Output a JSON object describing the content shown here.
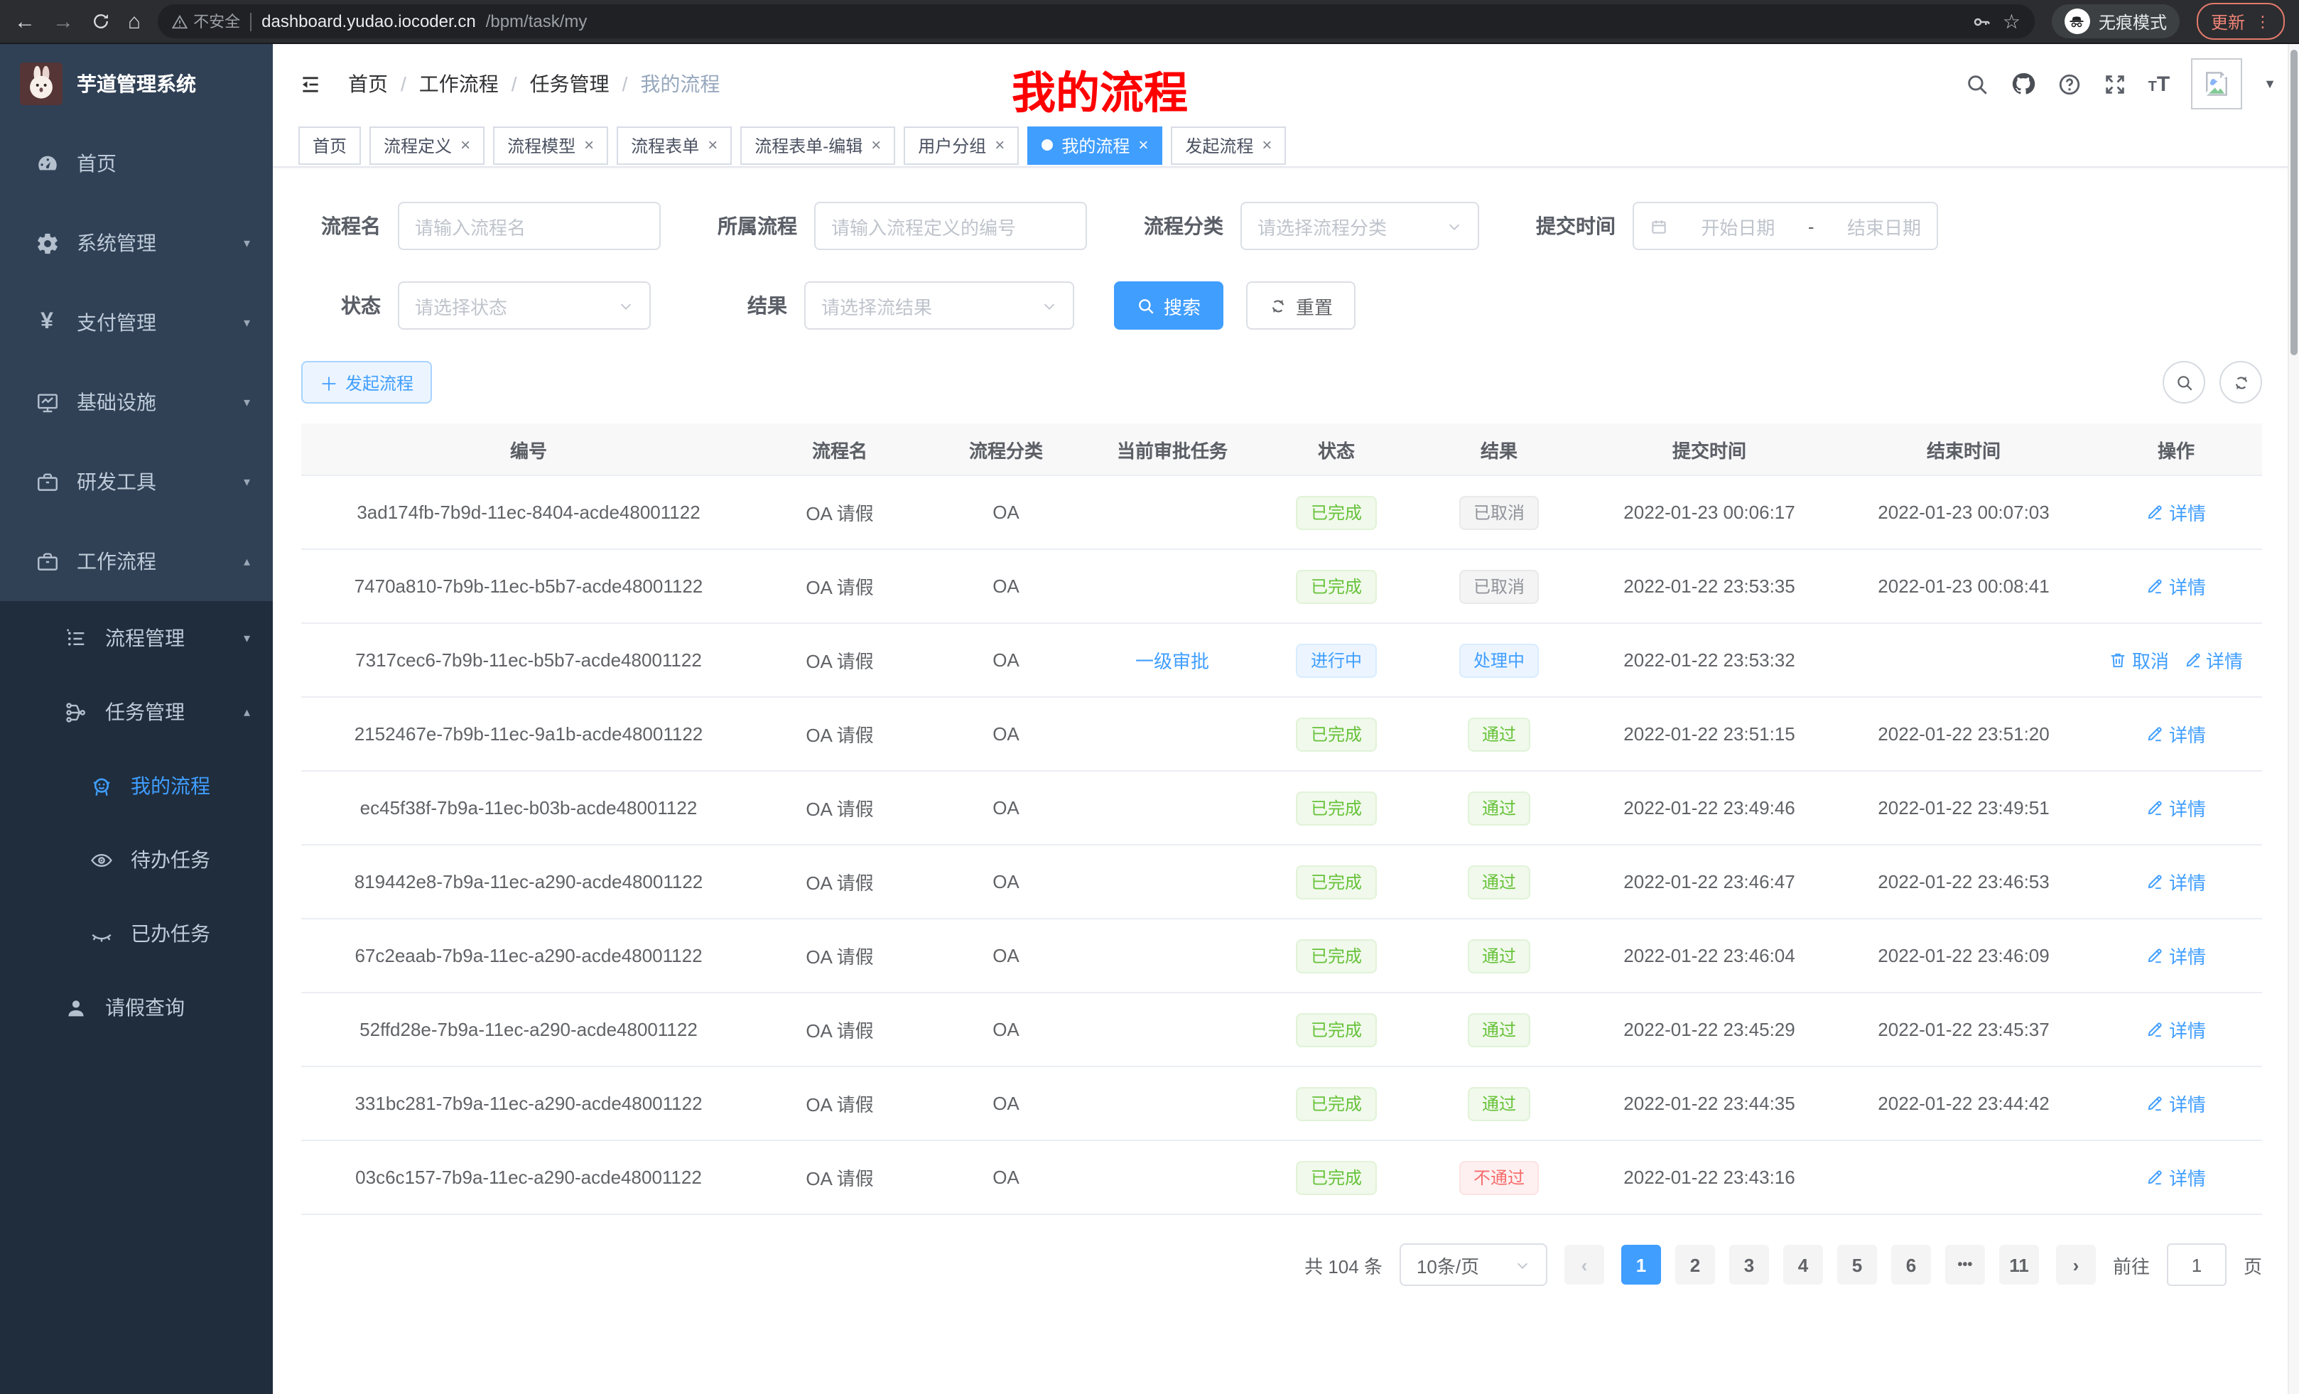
{
  "browser": {
    "security_label": "不安全",
    "url_host": "dashboard.yudao.iocoder.cn",
    "url_path": "/bpm/task/my",
    "incognito_label": "无痕模式",
    "update_label": "更新"
  },
  "annotation": {
    "text": "我的流程",
    "color": "#ff0000"
  },
  "colors": {
    "accent": "#409eff",
    "success": "#67c23a",
    "info": "#909399",
    "danger": "#f56c6c",
    "sidebar_bg": "#304156",
    "submenu_bg": "#1f2d3d"
  },
  "sidebar": {
    "logo_title": "芋道管理系统",
    "items": [
      {
        "key": "home",
        "label": "首页",
        "icon": "dashboard-icon",
        "level": 1,
        "chevron": "",
        "section": "root"
      },
      {
        "key": "system",
        "label": "系统管理",
        "icon": "gear-icon",
        "level": 1,
        "chevron": "down",
        "section": "root"
      },
      {
        "key": "payment",
        "label": "支付管理",
        "icon": "yen-icon",
        "level": 1,
        "chevron": "down",
        "section": "root"
      },
      {
        "key": "infrastructure",
        "label": "基础设施",
        "icon": "monitor-icon",
        "level": 1,
        "chevron": "down",
        "section": "root"
      },
      {
        "key": "dev-tools",
        "label": "研发工具",
        "icon": "briefcase-icon",
        "level": 1,
        "chevron": "down",
        "section": "root"
      },
      {
        "key": "workflow",
        "label": "工作流程",
        "icon": "briefcase-icon",
        "level": 1,
        "chevron": "up",
        "section": "root"
      },
      {
        "key": "process-mgmt",
        "label": "流程管理",
        "icon": "list-icon",
        "level": 2,
        "chevron": "down",
        "section": "sub"
      },
      {
        "key": "task-mgmt",
        "label": "任务管理",
        "icon": "tree-icon",
        "level": 2,
        "chevron": "up",
        "section": "sub"
      },
      {
        "key": "my-process",
        "label": "我的流程",
        "icon": "robot-face-icon",
        "level": 3,
        "chevron": "",
        "section": "sub",
        "active": true
      },
      {
        "key": "todo-tasks",
        "label": "待办任务",
        "icon": "eye-open-icon",
        "level": 3,
        "chevron": "",
        "section": "sub"
      },
      {
        "key": "done-tasks",
        "label": "已办任务",
        "icon": "eye-closed-icon",
        "level": 3,
        "chevron": "",
        "section": "sub"
      },
      {
        "key": "leave-query",
        "label": "请假查询",
        "icon": "user-icon",
        "level": 2,
        "chevron": "",
        "section": "sub"
      }
    ]
  },
  "header": {
    "breadcrumb": [
      "首页",
      "工作流程",
      "任务管理",
      "我的流程"
    ]
  },
  "tabs": [
    {
      "key": "home",
      "label": "首页",
      "closable": false
    },
    {
      "key": "process-definition",
      "label": "流程定义",
      "closable": true
    },
    {
      "key": "process-model",
      "label": "流程模型",
      "closable": true
    },
    {
      "key": "process-form",
      "label": "流程表单",
      "closable": true
    },
    {
      "key": "process-form-edit",
      "label": "流程表单-编辑",
      "closable": true
    },
    {
      "key": "user-group",
      "label": "用户分组",
      "closable": true
    },
    {
      "key": "my-process",
      "label": "我的流程",
      "closable": true,
      "active": true
    },
    {
      "key": "start-process",
      "label": "发起流程",
      "closable": true
    }
  ],
  "filters": {
    "fields": [
      {
        "label": "流程名",
        "placeholder": "请输入流程名",
        "type": "input"
      },
      {
        "label": "所属流程",
        "placeholder": "请输入流程定义的编号",
        "type": "input"
      },
      {
        "label": "流程分类",
        "placeholder": "请选择流程分类",
        "type": "select"
      },
      {
        "label": "提交时间",
        "type": "daterange",
        "start": "开始日期",
        "separator": "-",
        "end": "结束日期"
      },
      {
        "label": "状态",
        "placeholder": "请选择状态",
        "type": "select"
      },
      {
        "label": "结果",
        "placeholder": "请选择流结果",
        "type": "select"
      }
    ],
    "search_label": "搜索",
    "reset_label": "重置"
  },
  "toolbar": {
    "create_label": "发起流程"
  },
  "table": {
    "columns": [
      "编号",
      "流程名",
      "流程分类",
      "当前审批任务",
      "状态",
      "结果",
      "提交时间",
      "结束时间",
      "操作"
    ],
    "rows": [
      {
        "id": "3ad174fb-7b9d-11ec-8404-acde48001122",
        "name": "OA 请假",
        "category": "OA",
        "task": "",
        "status": {
          "text": "已完成",
          "type": "success"
        },
        "result": {
          "text": "已取消",
          "type": "info"
        },
        "submit_time": "2022-01-23 00:06:17",
        "end_time": "2022-01-23 00:07:03",
        "actions": [
          {
            "key": "detail",
            "label": "详情",
            "icon": "edit-icon"
          }
        ]
      },
      {
        "id": "7470a810-7b9b-11ec-b5b7-acde48001122",
        "name": "OA 请假",
        "category": "OA",
        "task": "",
        "status": {
          "text": "已完成",
          "type": "success"
        },
        "result": {
          "text": "已取消",
          "type": "info"
        },
        "submit_time": "2022-01-22 23:53:35",
        "end_time": "2022-01-23 00:08:41",
        "actions": [
          {
            "key": "detail",
            "label": "详情",
            "icon": "edit-icon"
          }
        ]
      },
      {
        "id": "7317cec6-7b9b-11ec-b5b7-acde48001122",
        "name": "OA 请假",
        "category": "OA",
        "task": "一级审批",
        "status": {
          "text": "进行中",
          "type": "primary"
        },
        "result": {
          "text": "处理中",
          "type": "primary"
        },
        "submit_time": "2022-01-22 23:53:32",
        "end_time": "",
        "actions": [
          {
            "key": "cancel",
            "label": "取消",
            "icon": "delete-icon"
          },
          {
            "key": "detail",
            "label": "详情",
            "icon": "edit-icon"
          }
        ]
      },
      {
        "id": "2152467e-7b9b-11ec-9a1b-acde48001122",
        "name": "OA 请假",
        "category": "OA",
        "task": "",
        "status": {
          "text": "已完成",
          "type": "success"
        },
        "result": {
          "text": "通过",
          "type": "success"
        },
        "submit_time": "2022-01-22 23:51:15",
        "end_time": "2022-01-22 23:51:20",
        "actions": [
          {
            "key": "detail",
            "label": "详情",
            "icon": "edit-icon"
          }
        ]
      },
      {
        "id": "ec45f38f-7b9a-11ec-b03b-acde48001122",
        "name": "OA 请假",
        "category": "OA",
        "task": "",
        "status": {
          "text": "已完成",
          "type": "success"
        },
        "result": {
          "text": "通过",
          "type": "success"
        },
        "submit_time": "2022-01-22 23:49:46",
        "end_time": "2022-01-22 23:49:51",
        "actions": [
          {
            "key": "detail",
            "label": "详情",
            "icon": "edit-icon"
          }
        ]
      },
      {
        "id": "819442e8-7b9a-11ec-a290-acde48001122",
        "name": "OA 请假",
        "category": "OA",
        "task": "",
        "status": {
          "text": "已完成",
          "type": "success"
        },
        "result": {
          "text": "通过",
          "type": "success"
        },
        "submit_time": "2022-01-22 23:46:47",
        "end_time": "2022-01-22 23:46:53",
        "actions": [
          {
            "key": "detail",
            "label": "详情",
            "icon": "edit-icon"
          }
        ]
      },
      {
        "id": "67c2eaab-7b9a-11ec-a290-acde48001122",
        "name": "OA 请假",
        "category": "OA",
        "task": "",
        "status": {
          "text": "已完成",
          "type": "success"
        },
        "result": {
          "text": "通过",
          "type": "success"
        },
        "submit_time": "2022-01-22 23:46:04",
        "end_time": "2022-01-22 23:46:09",
        "actions": [
          {
            "key": "detail",
            "label": "详情",
            "icon": "edit-icon"
          }
        ]
      },
      {
        "id": "52ffd28e-7b9a-11ec-a290-acde48001122",
        "name": "OA 请假",
        "category": "OA",
        "task": "",
        "status": {
          "text": "已完成",
          "type": "success"
        },
        "result": {
          "text": "通过",
          "type": "success"
        },
        "submit_time": "2022-01-22 23:45:29",
        "end_time": "2022-01-22 23:45:37",
        "actions": [
          {
            "key": "detail",
            "label": "详情",
            "icon": "edit-icon"
          }
        ]
      },
      {
        "id": "331bc281-7b9a-11ec-a290-acde48001122",
        "name": "OA 请假",
        "category": "OA",
        "task": "",
        "status": {
          "text": "已完成",
          "type": "success"
        },
        "result": {
          "text": "通过",
          "type": "success"
        },
        "submit_time": "2022-01-22 23:44:35",
        "end_time": "2022-01-22 23:44:42",
        "actions": [
          {
            "key": "detail",
            "label": "详情",
            "icon": "edit-icon"
          }
        ]
      },
      {
        "id": "03c6c157-7b9a-11ec-a290-acde48001122",
        "name": "OA 请假",
        "category": "OA",
        "task": "",
        "status": {
          "text": "已完成",
          "type": "success"
        },
        "result": {
          "text": "不通过",
          "type": "danger"
        },
        "submit_time": "2022-01-22 23:43:16",
        "end_time": "",
        "actions": [
          {
            "key": "detail",
            "label": "详情",
            "icon": "edit-icon"
          }
        ]
      }
    ]
  },
  "pagination": {
    "total_text": "共 104 条",
    "page_size": "10条/页",
    "pages": [
      {
        "label": "1",
        "active": true
      },
      {
        "label": "2"
      },
      {
        "label": "3"
      },
      {
        "label": "4"
      },
      {
        "label": "5"
      },
      {
        "label": "6"
      },
      {
        "label": "•••",
        "ellipsis": true
      },
      {
        "label": "11"
      }
    ],
    "goto_label": "前往",
    "goto_value": "1",
    "goto_suffix": "页"
  }
}
